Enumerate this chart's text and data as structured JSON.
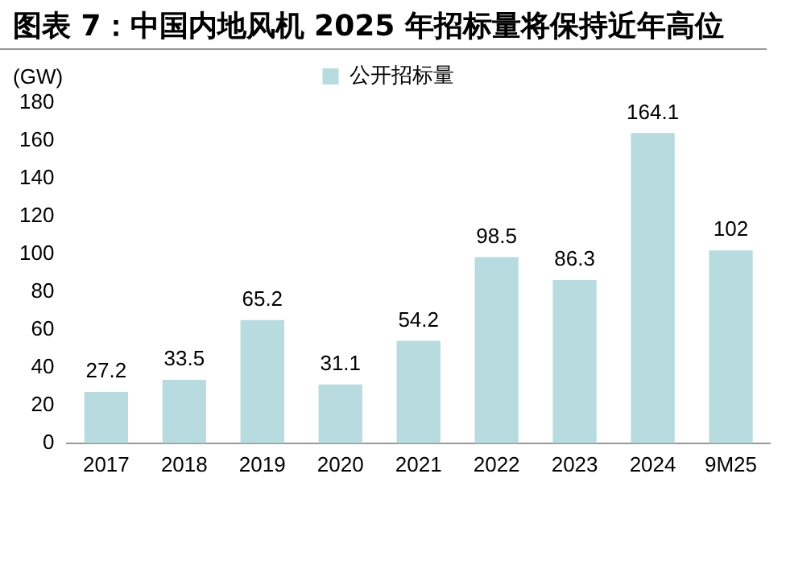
{
  "chart_data": {
    "type": "bar",
    "title": "图表 7：中国内地风机 2025 年招标量将保持近年高位",
    "ylabel": "(GW)",
    "categories": [
      "2017",
      "2018",
      "2019",
      "2020",
      "2021",
      "2022",
      "2023",
      "2024",
      "9M25"
    ],
    "series": [
      {
        "name": "公开招标量",
        "color": "#b7dbde",
        "values": [
          27.2,
          33.5,
          65.2,
          31.1,
          54.2,
          98.5,
          86.3,
          164.1,
          102
        ]
      }
    ],
    "ylim": [
      0,
      180
    ],
    "yticks": [
      0,
      20,
      40,
      60,
      80,
      100,
      120,
      140,
      160,
      180
    ],
    "grid": false,
    "legend": "top",
    "data_labels": true
  }
}
